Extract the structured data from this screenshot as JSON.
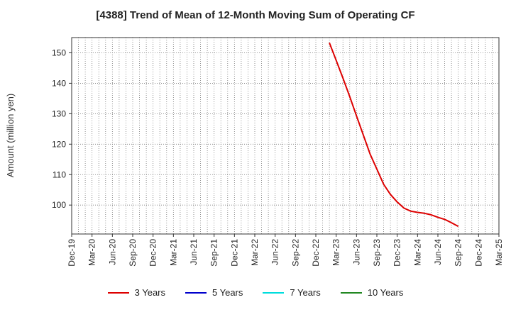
{
  "chart_data": {
    "type": "line",
    "title": "[4388]  Trend of Mean of 12-Month Moving Sum of Operating CF",
    "ylabel": "Amount (million yen)",
    "xlabel": "",
    "ylim": [
      90.5,
      155
    ],
    "yticks": [
      100,
      110,
      120,
      130,
      140,
      150
    ],
    "grid": true,
    "legend_position": "bottom-center",
    "xtick_labels": [
      "Dec-19",
      "Mar-20",
      "Jun-20",
      "Sep-20",
      "Dec-20",
      "Mar-21",
      "Jun-21",
      "Sep-21",
      "Dec-21",
      "Mar-22",
      "Jun-22",
      "Sep-22",
      "Dec-22",
      "Mar-23",
      "Jun-23",
      "Sep-23",
      "Dec-23",
      "Mar-24",
      "Jun-24",
      "Sep-24",
      "Dec-24",
      "Mar-25"
    ],
    "x_months": [
      "Feb-23",
      "Mar-23",
      "Apr-23",
      "May-23",
      "Jun-23",
      "Jul-23",
      "Aug-23",
      "Sep-23",
      "Oct-23",
      "Nov-23",
      "Dec-23",
      "Jan-24",
      "Feb-24",
      "Mar-24",
      "Apr-24",
      "May-24",
      "Jun-24",
      "Jul-24",
      "Aug-24",
      "Sep-24"
    ],
    "series": [
      {
        "name": "3 Years",
        "color": "#dd0000",
        "x_index": [
          38,
          39,
          40,
          41,
          42,
          43,
          44,
          45,
          46,
          47,
          48,
          49,
          50,
          51,
          52,
          53,
          54,
          55,
          56,
          57
        ],
        "values": [
          153.3,
          147.5,
          141.7,
          135.6,
          129.3,
          123.0,
          116.8,
          111.8,
          106.8,
          103.5,
          101.0,
          99.0,
          98.0,
          97.6,
          97.3,
          96.8,
          96.0,
          95.3,
          94.2,
          93.0
        ]
      },
      {
        "name": "5 Years",
        "color": "#0000cc",
        "x_index": [],
        "values": []
      },
      {
        "name": "7 Years",
        "color": "#00dddd",
        "x_index": [],
        "values": []
      },
      {
        "name": "10 Years",
        "color": "#228822",
        "x_index": [],
        "values": []
      }
    ]
  }
}
